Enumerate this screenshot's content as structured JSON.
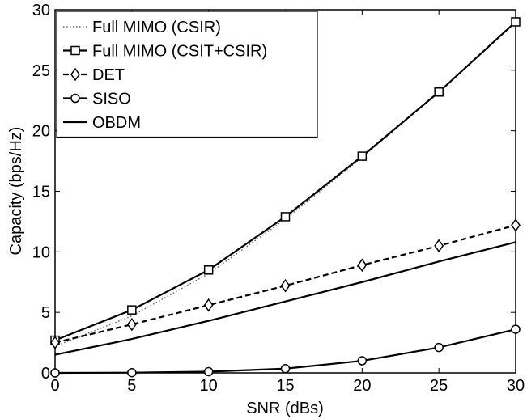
{
  "chart_data": {
    "type": "line",
    "xlabel": "SNR (dBs)",
    "ylabel": "Capacity (bps/Hz)",
    "xlim": [
      0,
      30
    ],
    "ylim": [
      0,
      30
    ],
    "xticks": [
      0,
      5,
      10,
      15,
      20,
      25,
      30
    ],
    "yticks": [
      0,
      5,
      10,
      15,
      20,
      25,
      30
    ],
    "grid": false,
    "legend_position": "top-left",
    "series": [
      {
        "name": "Full MIMO (CSIR)",
        "style": "dotted",
        "marker": "none",
        "color": "#666666",
        "x": [
          0,
          5,
          10,
          15,
          20,
          25,
          30
        ],
        "y": [
          2.2,
          4.7,
          8.2,
          12.7,
          17.8,
          23.2,
          29.0
        ]
      },
      {
        "name": "Full MIMO (CSIT+CSIR)",
        "style": "solid",
        "marker": "square",
        "color": "#000000",
        "x": [
          0,
          5,
          10,
          15,
          20,
          25,
          30
        ],
        "y": [
          2.7,
          5.2,
          8.5,
          12.9,
          17.9,
          23.2,
          29.0
        ]
      },
      {
        "name": "DET",
        "style": "dashed",
        "marker": "diamond",
        "color": "#000000",
        "x": [
          0,
          5,
          10,
          15,
          20,
          25,
          30
        ],
        "y": [
          2.5,
          4.0,
          5.6,
          7.2,
          8.9,
          10.5,
          12.2
        ]
      },
      {
        "name": "SISO",
        "style": "solid",
        "marker": "circle",
        "color": "#000000",
        "x": [
          0,
          5,
          10,
          15,
          20,
          25,
          30
        ],
        "y": [
          0.0,
          0.02,
          0.1,
          0.35,
          1.0,
          2.1,
          3.6
        ]
      },
      {
        "name": "OBDM",
        "style": "solid",
        "marker": "none",
        "color": "#000000",
        "x": [
          0,
          5,
          10,
          15,
          20,
          25,
          30
        ],
        "y": [
          1.5,
          2.8,
          4.3,
          5.9,
          7.5,
          9.2,
          10.8
        ]
      }
    ]
  }
}
